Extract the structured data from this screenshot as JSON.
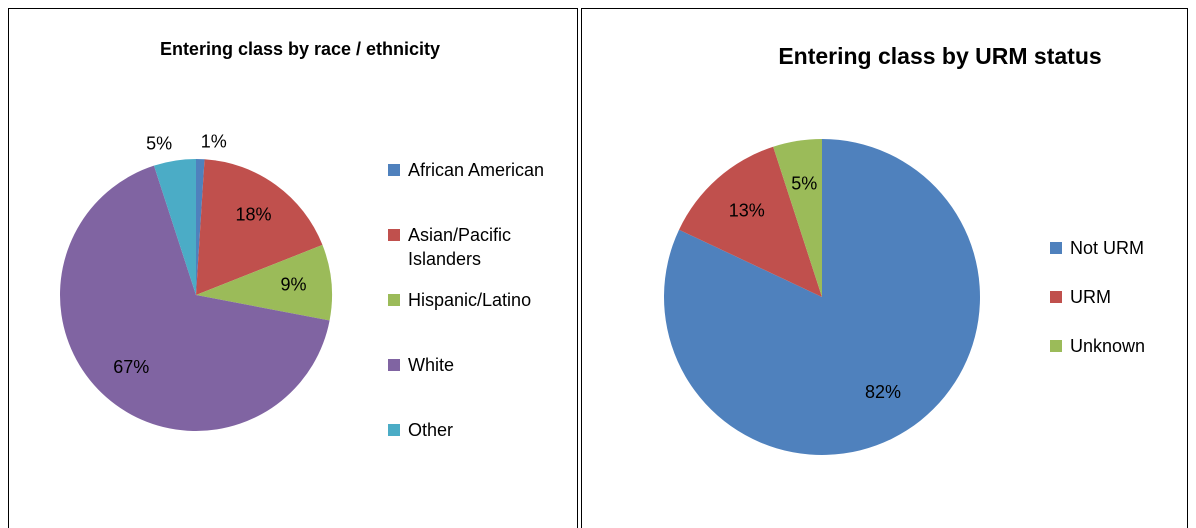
{
  "chart_data": [
    {
      "type": "pie",
      "title": "Entering class by race / ethnicity",
      "categories": [
        "African American",
        "Asian/Pacific Islanders",
        "Hispanic/Latino",
        "White",
        "Other"
      ],
      "values": [
        1,
        18,
        9,
        67,
        5
      ],
      "value_labels": [
        "1%",
        "18%",
        "9%",
        "67%",
        "5%"
      ],
      "colors": [
        "#4f81bd",
        "#c0504d",
        "#9bbb59",
        "#8064a2",
        "#4bacc6"
      ]
    },
    {
      "type": "pie",
      "title": "Entering class by URM status",
      "categories": [
        "Not URM",
        "URM",
        "Unknown"
      ],
      "values": [
        82,
        13,
        5
      ],
      "value_labels": [
        "82%",
        "13%",
        "5%"
      ],
      "colors": [
        "#4f81bd",
        "#c0504d",
        "#9bbb59"
      ]
    }
  ]
}
